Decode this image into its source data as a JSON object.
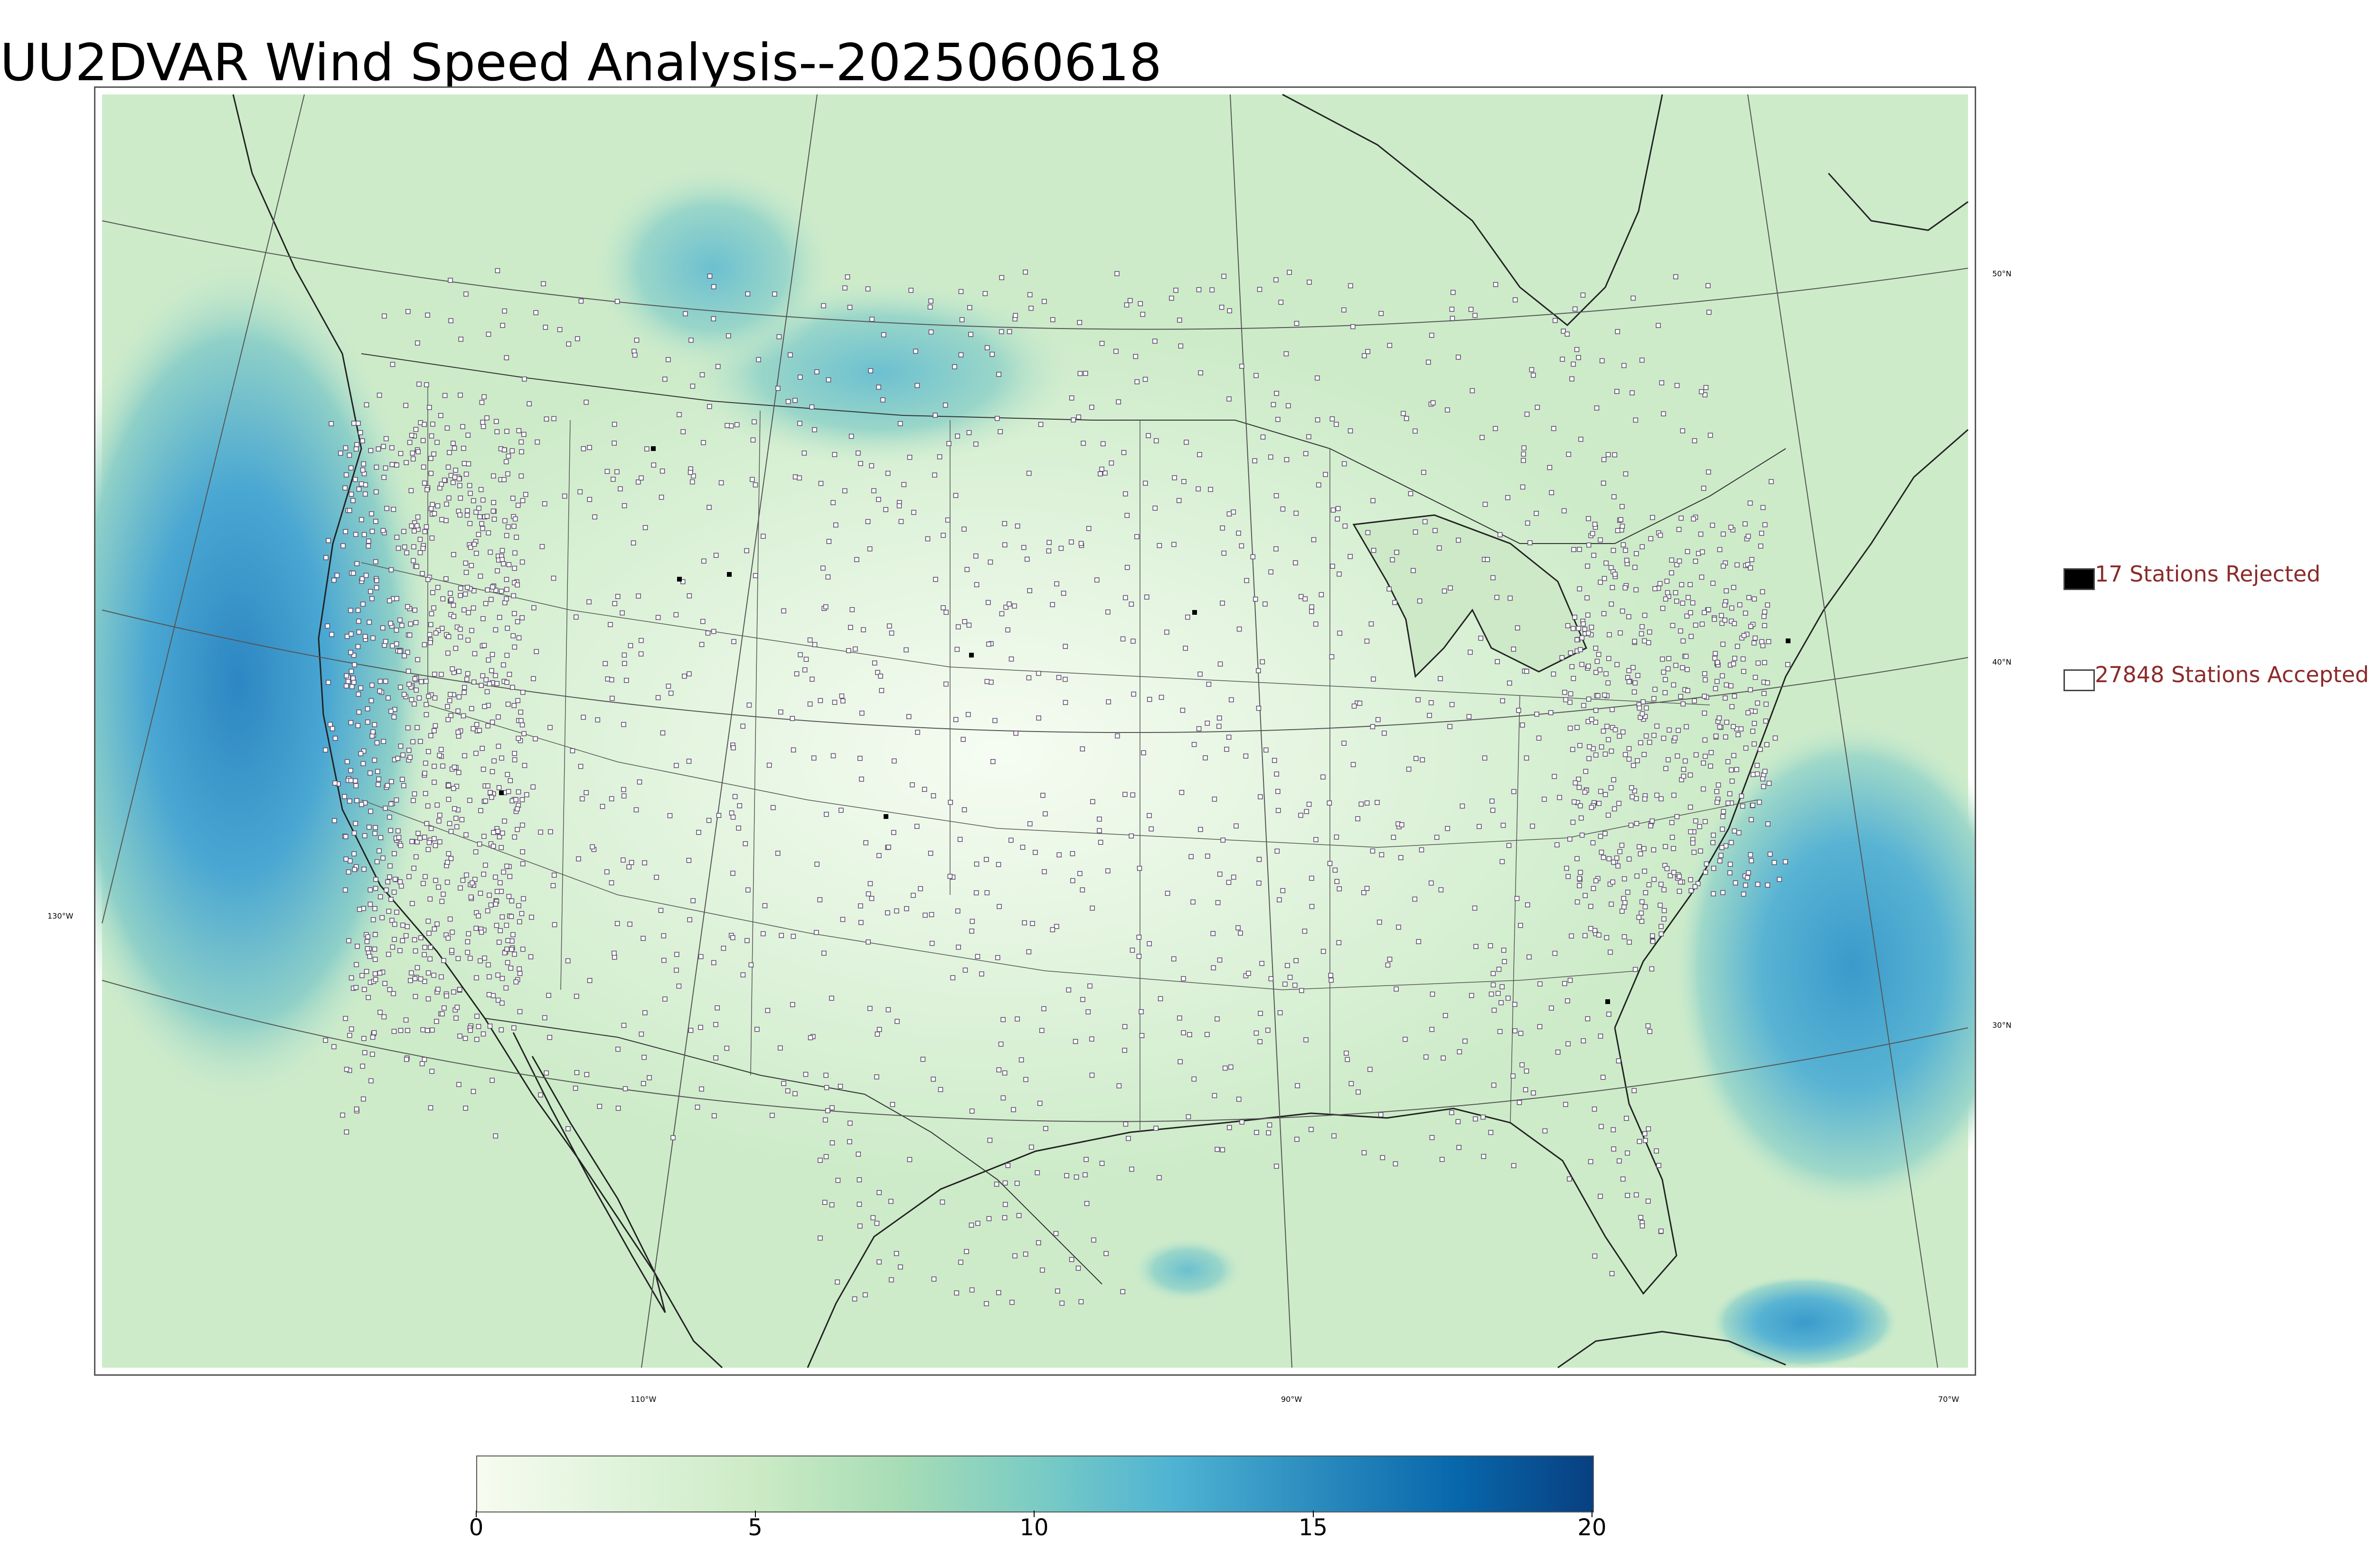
{
  "title": "UU2DVAR Wind Speed Analysis--2025060618",
  "map": {
    "lat_labels": [
      "50°N",
      "40°N",
      "30°N"
    ],
    "lon_labels": [
      "130°W",
      "110°W",
      "90°W",
      "70°W"
    ],
    "colors": {
      "light": "#eefaea",
      "mid": "#bfe6c1",
      "teal": "#7fcbc4",
      "blue": "#4aa7d2",
      "deep": "#2a7fbe",
      "coast": "#222222",
      "grid": "#555555"
    }
  },
  "legend": {
    "rejected": {
      "label": "17 Stations Rejected",
      "fill": "#000000"
    },
    "accepted": {
      "label": "27848 Stations Accepted",
      "fill": "#ffffff"
    }
  },
  "colorbar": {
    "tick_labels": [
      "0",
      "5",
      "10",
      "15",
      "20"
    ],
    "min": 0,
    "max": 20,
    "colors": [
      "#f7fcf0",
      "#e0f3db",
      "#ccebc5",
      "#a8ddb5",
      "#7bccc4",
      "#4eb3d3",
      "#2b8cbe",
      "#0868ac",
      "#084081"
    ]
  }
}
